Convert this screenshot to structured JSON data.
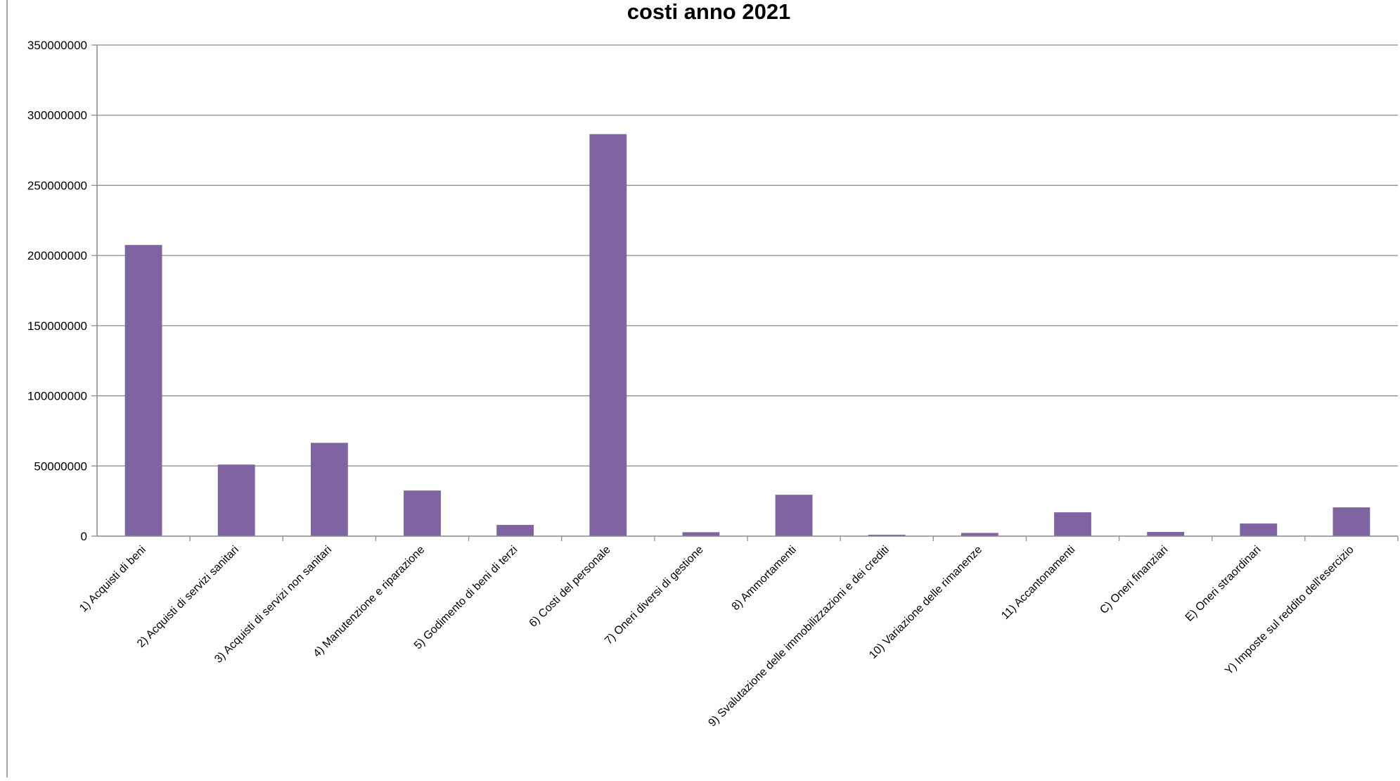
{
  "chart_data": {
    "type": "bar",
    "title": "costi anno 2021",
    "xlabel": "",
    "ylabel": "",
    "ylim": [
      0,
      350000000
    ],
    "y_ticks": [
      0,
      50000000,
      100000000,
      150000000,
      200000000,
      250000000,
      300000000,
      350000000
    ],
    "grid": true,
    "legend": "none",
    "bar_color": "#8064A2",
    "categories": [
      "1) Acquisti di beni",
      "2) Acquisti di servizi sanitari",
      "3) Acquisti di servizi non sanitari",
      "4) Manutenzione e riparazione",
      "5) Godimento di beni di terzi",
      "6) Costi del personale",
      "7) Oneri diversi di gestione",
      "8) Ammortamenti",
      "9) Svalutazione delle immobilizzazioni e dei crediti",
      "10) Variazione delle rimanenze",
      "11) Accantonamenti",
      "C) Oneri finanziari",
      "E) Oneri straordinari",
      "Y) Imposte sul reddito dell'esercizio"
    ],
    "values": [
      207500000,
      51000000,
      66500000,
      32500000,
      8000000,
      286500000,
      2800000,
      29500000,
      1000000,
      2300000,
      17000000,
      3000000,
      9000000,
      20500000
    ]
  }
}
